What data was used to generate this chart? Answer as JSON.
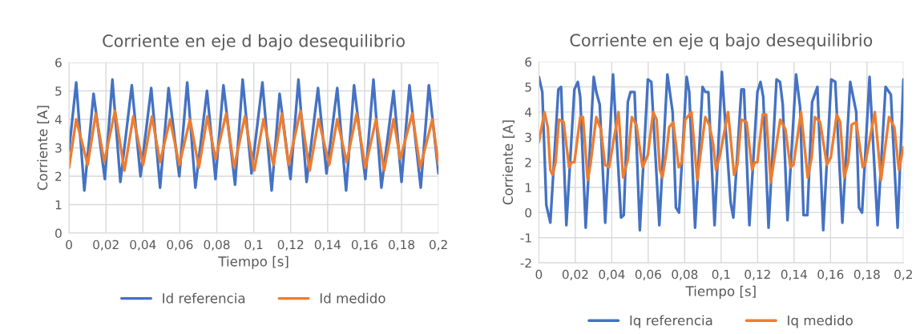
{
  "chart_data": [
    {
      "type": "line",
      "title": "Corriente en eje d bajo desequilibrio",
      "xlabel": "Tiempo [s]",
      "ylabel": "Corriente [A]",
      "xlim": [
        0,
        0.2
      ],
      "xticks": [
        0,
        {
          "value": 0.02,
          "label": "0,02"
        },
        {
          "value": 0.04,
          "label": "0,04"
        },
        {
          "value": 0.06,
          "label": "0,06"
        },
        {
          "value": 0.08,
          "label": "0,08"
        },
        {
          "value": 0.1,
          "label": "0,1"
        },
        {
          "value": 0.12,
          "label": "0,12"
        },
        {
          "value": 0.14,
          "label": "0,14"
        },
        {
          "value": 0.16,
          "label": "0,16"
        },
        {
          "value": 0.18,
          "label": "0,18"
        },
        {
          "value": 0.2,
          "label": "0,2"
        }
      ],
      "ylim": [
        0,
        6
      ],
      "yticks": [
        0,
        1,
        2,
        3,
        4,
        5,
        6
      ],
      "grid": true,
      "legend": "bottom",
      "marker": "none",
      "line_style": "solid",
      "series": [
        {
          "name": "Id referencia",
          "color": "#4472c4",
          "x": [
            0,
            0.0039,
            0.0083,
            0.0133,
            0.0194,
            0.0235,
            0.0278,
            0.034,
            0.0387,
            0.0445,
            0.0493,
            0.0539,
            0.0597,
            0.064,
            0.0684,
            0.0747,
            0.0793,
            0.0836,
            0.0899,
            0.094,
            0.0988,
            0.1047,
            0.1097,
            0.114,
            0.1199,
            0.1242,
            0.1286,
            0.1348,
            0.1394,
            0.1452,
            0.15,
            0.1543,
            0.1604,
            0.1648,
            0.1691,
            0.1757,
            0.18,
            0.1843,
            0.1904,
            0.1948,
            0.2
          ],
          "values": [
            2.9,
            5.3,
            1.5,
            4.9,
            1.9,
            5.4,
            1.8,
            5.2,
            2.0,
            5.1,
            1.6,
            5.1,
            2.0,
            5.3,
            1.6,
            5.0,
            1.9,
            5.2,
            1.7,
            5.4,
            2.1,
            5.3,
            1.5,
            4.9,
            1.9,
            5.4,
            1.8,
            5.1,
            2.1,
            5.1,
            1.5,
            5.2,
            1.9,
            5.4,
            1.6,
            5.0,
            1.8,
            5.2,
            1.6,
            5.2,
            2.1
          ]
        },
        {
          "name": "Id medido",
          "color": "#ed7d31",
          "x": [
            0,
            0.0039,
            0.0101,
            0.0145,
            0.0191,
            0.0249,
            0.03,
            0.0348,
            0.0401,
            0.0449,
            0.0493,
            0.0547,
            0.0597,
            0.0655,
            0.0703,
            0.0749,
            0.0793,
            0.0851,
            0.0894,
            0.0952,
            0.1003,
            0.1053,
            0.1107,
            0.1152,
            0.1188,
            0.1253,
            0.1303,
            0.1351,
            0.1409,
            0.1452,
            0.1503,
            0.1557,
            0.1604,
            0.1662,
            0.1706,
            0.1757,
            0.1793,
            0.1858,
            0.1901,
            0.1967,
            0.2
          ],
          "values": [
            2.3,
            4.0,
            2.4,
            4.2,
            2.5,
            4.3,
            2.2,
            4.1,
            2.4,
            4.1,
            2.5,
            4.0,
            2.4,
            4.0,
            2.3,
            4.1,
            2.6,
            4.2,
            2.3,
            4.1,
            2.2,
            4.0,
            2.4,
            4.2,
            2.4,
            4.3,
            2.2,
            4.0,
            2.4,
            4.0,
            2.5,
            4.2,
            2.3,
            4.0,
            2.2,
            4.0,
            2.6,
            4.2,
            2.3,
            4.0,
            2.4
          ]
        }
      ]
    },
    {
      "type": "line",
      "title": "Corriente en eje q bajo desequilibrio",
      "xlabel": "Tiempo [s]",
      "ylabel": "Corriente [A]",
      "xlim": [
        0,
        0.2
      ],
      "xticks": [
        0,
        {
          "value": 0.02,
          "label": "0,02"
        },
        {
          "value": 0.04,
          "label": "0,04"
        },
        {
          "value": 0.06,
          "label": "0,06"
        },
        {
          "value": 0.08,
          "label": "0,08"
        },
        {
          "value": 0.1,
          "label": "0,1"
        },
        {
          "value": 0.12,
          "label": "0,12"
        },
        {
          "value": 0.14,
          "label": "0,14"
        },
        {
          "value": 0.16,
          "label": "0,16"
        },
        {
          "value": 0.18,
          "label": "0,18"
        },
        {
          "value": 0.2,
          "label": "0,2"
        }
      ],
      "ylim": [
        -2,
        6
      ],
      "yticks": [
        -2,
        -1,
        0,
        1,
        2,
        3,
        4,
        5,
        6
      ],
      "grid": true,
      "legend": "bottom",
      "marker": "none",
      "line_style": "solid",
      "series": [
        {
          "name": "Iq referencia",
          "color": "#4472c4",
          "x": [
            0,
            0.0019,
            0.0041,
            0.0063,
            0.0107,
            0.0122,
            0.0151,
            0.0195,
            0.0214,
            0.0227,
            0.0257,
            0.0301,
            0.0315,
            0.0334,
            0.0364,
            0.0407,
            0.0451,
            0.0466,
            0.0488,
            0.0503,
            0.0525,
            0.0554,
            0.0598,
            0.0617,
            0.0661,
            0.0705,
            0.0734,
            0.0752,
            0.0769,
            0.0811,
            0.0825,
            0.0857,
            0.0898,
            0.0913,
            0.093,
            0.0964,
            0.1004,
            0.1052,
            0.1067,
            0.1111,
            0.1125,
            0.1155,
            0.1199,
            0.1216,
            0.1231,
            0.126,
            0.1304,
            0.1323,
            0.1338,
            0.1364,
            0.1411,
            0.1433,
            0.1452,
            0.1473,
            0.1499,
            0.1528,
            0.156,
            0.1604,
            0.1626,
            0.1665,
            0.1708,
            0.1741,
            0.1756,
            0.1773,
            0.1814,
            0.1858,
            0.1902,
            0.1931,
            0.1968,
            0.2
          ],
          "values": [
            5.4,
            4.8,
            0.3,
            -0.4,
            4.9,
            5.0,
            -0.5,
            4.9,
            5.2,
            4.6,
            -0.6,
            5.4,
            4.8,
            4.3,
            -0.4,
            5.5,
            -0.2,
            -0.1,
            4.4,
            4.8,
            4.8,
            -0.7,
            5.3,
            5.2,
            -0.5,
            5.5,
            4.0,
            0.2,
            0.0,
            5.4,
            4.8,
            -0.6,
            5.0,
            4.8,
            4.8,
            -0.5,
            5.6,
            0.4,
            -0.2,
            4.9,
            4.9,
            -0.5,
            4.8,
            5.2,
            4.6,
            -0.6,
            5.3,
            5.2,
            4.3,
            -0.3,
            5.5,
            4.2,
            -0.1,
            -0.1,
            4.4,
            5.0,
            -0.7,
            5.3,
            5.2,
            -0.4,
            5.2,
            4.0,
            0.2,
            0.0,
            5.4,
            -0.5,
            5.0,
            4.7,
            -0.6,
            5.3
          ]
        },
        {
          "name": "Iq medido",
          "color": "#ed7d31",
          "x": [
            0,
            0.0031,
            0.0049,
            0.0063,
            0.0075,
            0.0092,
            0.011,
            0.0136,
            0.0166,
            0.018,
            0.0195,
            0.0227,
            0.0242,
            0.0268,
            0.0283,
            0.0315,
            0.0341,
            0.0363,
            0.0385,
            0.0437,
            0.0462,
            0.0488,
            0.051,
            0.0535,
            0.0569,
            0.0598,
            0.0627,
            0.0646,
            0.0664,
            0.0678,
            0.07,
            0.0715,
            0.0737,
            0.0767,
            0.0784,
            0.0803,
            0.0837,
            0.0869,
            0.0913,
            0.0935,
            0.0957,
            0.0972,
            0.0994,
            0.1038,
            0.1071,
            0.1089,
            0.1111,
            0.114,
            0.117,
            0.1184,
            0.1199,
            0.1228,
            0.1247,
            0.1272,
            0.1324,
            0.1353,
            0.138,
            0.1397,
            0.1438,
            0.1475,
            0.1497,
            0.1514,
            0.1543,
            0.158,
            0.1602,
            0.1634,
            0.1653,
            0.1675,
            0.1697,
            0.1716,
            0.1741,
            0.1777,
            0.1792,
            0.1843,
            0.1877,
            0.1921,
            0.195,
            0.1975,
            0.2
          ],
          "values": [
            2.8,
            4.0,
            3.4,
            1.7,
            1.5,
            2.0,
            3.7,
            3.6,
            1.8,
            2.0,
            2.0,
            3.8,
            3.8,
            1.3,
            1.9,
            3.8,
            3.3,
            1.9,
            1.8,
            4.0,
            1.4,
            2.1,
            3.8,
            3.5,
            1.8,
            2.3,
            4.0,
            3.7,
            1.7,
            1.4,
            2.4,
            3.4,
            3.6,
            1.8,
            2.0,
            3.7,
            4.0,
            1.3,
            3.8,
            3.5,
            2.7,
            1.7,
            2.3,
            4.0,
            1.5,
            1.9,
            3.7,
            3.6,
            1.7,
            2.0,
            2.0,
            3.9,
            3.9,
            1.2,
            3.7,
            3.3,
            1.8,
            1.9,
            4.0,
            1.4,
            2.2,
            3.8,
            3.6,
            1.9,
            2.2,
            3.9,
            3.6,
            1.4,
            2.0,
            3.5,
            3.6,
            1.8,
            2.0,
            4.0,
            1.3,
            3.8,
            3.4,
            1.7,
            2.6
          ]
        }
      ]
    }
  ]
}
